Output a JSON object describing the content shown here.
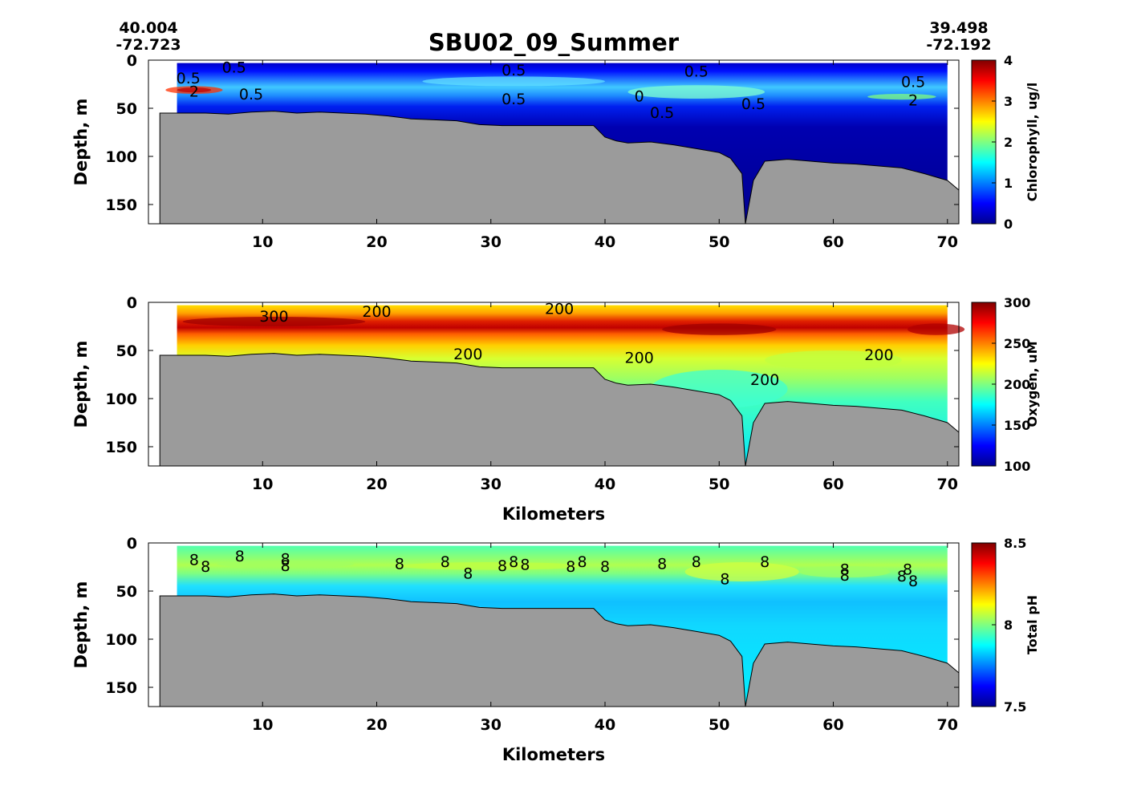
{
  "title": "SBU02_09_Summer",
  "corners": {
    "left_lat": "40.004",
    "left_lon": "-72.723",
    "right_lat": "39.498",
    "right_lon": "-72.192"
  },
  "colors": {
    "seafloor": "#9b9b9b",
    "jet": [
      "#00008f",
      "#0000ff",
      "#0080ff",
      "#00ffff",
      "#80ff80",
      "#ffff00",
      "#ff8000",
      "#ff0000",
      "#800000"
    ]
  },
  "chart_data": [
    {
      "type": "heatmap",
      "name": "chlorophyll-section",
      "xlim": [
        0,
        71
      ],
      "ylim": [
        170,
        0
      ],
      "xticks": [
        "10",
        "20",
        "30",
        "40",
        "50",
        "60",
        "70"
      ],
      "yticks": [
        "0",
        "50",
        "100",
        "150"
      ],
      "xlabel": "",
      "ylabel": "Depth, m",
      "colorbar": {
        "label": "Chlorophyll, ug/l",
        "min": 0,
        "max": 4,
        "ticks": [
          "0",
          "1",
          "2",
          "3",
          "4"
        ]
      },
      "contour_labels": [
        {
          "text": "0.5",
          "x": 7.5,
          "y": 8
        },
        {
          "text": "0.5",
          "x": 3.5,
          "y": 19
        },
        {
          "text": "2",
          "x": 4,
          "y": 33
        },
        {
          "text": "0.5",
          "x": 9,
          "y": 36
        },
        {
          "text": "0.5",
          "x": 32,
          "y": 11
        },
        {
          "text": "0.5",
          "x": 32,
          "y": 41
        },
        {
          "text": "0.5",
          "x": 48,
          "y": 12
        },
        {
          "text": "0.5",
          "x": 67,
          "y": 23
        },
        {
          "text": "2",
          "x": 67,
          "y": 42
        },
        {
          "text": "0.5",
          "x": 53,
          "y": 46
        },
        {
          "text": "0.5",
          "x": 45,
          "y": 55
        },
        {
          "text": "0",
          "x": 43,
          "y": 38
        }
      ]
    },
    {
      "type": "heatmap",
      "name": "oxygen-section",
      "xlim": [
        0,
        71
      ],
      "ylim": [
        170,
        0
      ],
      "xticks": [
        "10",
        "20",
        "30",
        "40",
        "50",
        "60",
        "70"
      ],
      "yticks": [
        "0",
        "50",
        "100",
        "150"
      ],
      "xlabel": "Kilometers",
      "ylabel": "Depth, m",
      "colorbar": {
        "label": "Oxygen, uM",
        "min": 100,
        "max": 300,
        "ticks": [
          "100",
          "150",
          "200",
          "250",
          "300"
        ]
      },
      "contour_labels": [
        {
          "text": "300",
          "x": 11,
          "y": 15
        },
        {
          "text": "200",
          "x": 20,
          "y": 10
        },
        {
          "text": "200",
          "x": 36,
          "y": 7
        },
        {
          "text": "200",
          "x": 28,
          "y": 54
        },
        {
          "text": "200",
          "x": 43,
          "y": 58
        },
        {
          "text": "200",
          "x": 54,
          "y": 81
        },
        {
          "text": "200",
          "x": 64,
          "y": 55
        }
      ]
    },
    {
      "type": "heatmap",
      "name": "ph-section",
      "xlim": [
        0,
        71
      ],
      "ylim": [
        170,
        0
      ],
      "xticks": [
        "10",
        "20",
        "30",
        "40",
        "50",
        "60",
        "70"
      ],
      "yticks": [
        "0",
        "50",
        "100",
        "150"
      ],
      "xlabel": "Kilometers",
      "ylabel": "Depth, m",
      "colorbar": {
        "label": "Total pH",
        "min": 7.5,
        "max": 8.5,
        "ticks": [
          "7.5",
          "8",
          "8.5"
        ]
      },
      "contour_labels": [
        {
          "text": "8",
          "x": 4,
          "y": 18
        },
        {
          "text": "8",
          "x": 5,
          "y": 25
        },
        {
          "text": "8",
          "x": 8,
          "y": 14
        },
        {
          "text": "8",
          "x": 12,
          "y": 17
        },
        {
          "text": "8",
          "x": 12,
          "y": 24
        },
        {
          "text": "8",
          "x": 22,
          "y": 22
        },
        {
          "text": "8",
          "x": 26,
          "y": 20
        },
        {
          "text": "8",
          "x": 28,
          "y": 32
        },
        {
          "text": "8",
          "x": 31,
          "y": 24
        },
        {
          "text": "8",
          "x": 32,
          "y": 20
        },
        {
          "text": "8",
          "x": 33,
          "y": 23
        },
        {
          "text": "8",
          "x": 37,
          "y": 25
        },
        {
          "text": "8",
          "x": 38,
          "y": 20
        },
        {
          "text": "8",
          "x": 40,
          "y": 25
        },
        {
          "text": "8",
          "x": 45,
          "y": 22
        },
        {
          "text": "8",
          "x": 48,
          "y": 20
        },
        {
          "text": "8",
          "x": 50.5,
          "y": 38
        },
        {
          "text": "8",
          "x": 54,
          "y": 20
        },
        {
          "text": "8",
          "x": 61,
          "y": 28
        },
        {
          "text": "8",
          "x": 61,
          "y": 34
        },
        {
          "text": "8",
          "x": 66,
          "y": 35
        },
        {
          "text": "8",
          "x": 66.5,
          "y": 28
        },
        {
          "text": "8",
          "x": 67,
          "y": 40
        }
      ]
    }
  ],
  "seafloor_profile": [
    [
      1,
      55
    ],
    [
      3,
      55
    ],
    [
      5,
      55
    ],
    [
      7,
      56
    ],
    [
      9,
      54
    ],
    [
      11,
      53
    ],
    [
      13,
      55
    ],
    [
      15,
      54
    ],
    [
      17,
      55
    ],
    [
      19,
      56
    ],
    [
      21,
      58
    ],
    [
      23,
      61
    ],
    [
      25,
      62
    ],
    [
      27,
      63
    ],
    [
      29,
      67
    ],
    [
      31,
      68
    ],
    [
      33,
      68
    ],
    [
      35,
      68
    ],
    [
      37,
      68
    ],
    [
      39,
      68
    ],
    [
      40,
      80
    ],
    [
      41,
      84
    ],
    [
      42,
      86
    ],
    [
      44,
      85
    ],
    [
      46,
      88
    ],
    [
      48,
      92
    ],
    [
      50,
      96
    ],
    [
      51,
      102
    ],
    [
      52,
      118
    ],
    [
      52.3,
      170
    ],
    [
      53,
      125
    ],
    [
      54,
      105
    ],
    [
      56,
      103
    ],
    [
      58,
      105
    ],
    [
      60,
      107
    ],
    [
      62,
      108
    ],
    [
      64,
      110
    ],
    [
      66,
      112
    ],
    [
      68,
      118
    ],
    [
      70,
      125
    ],
    [
      71,
      135
    ]
  ]
}
